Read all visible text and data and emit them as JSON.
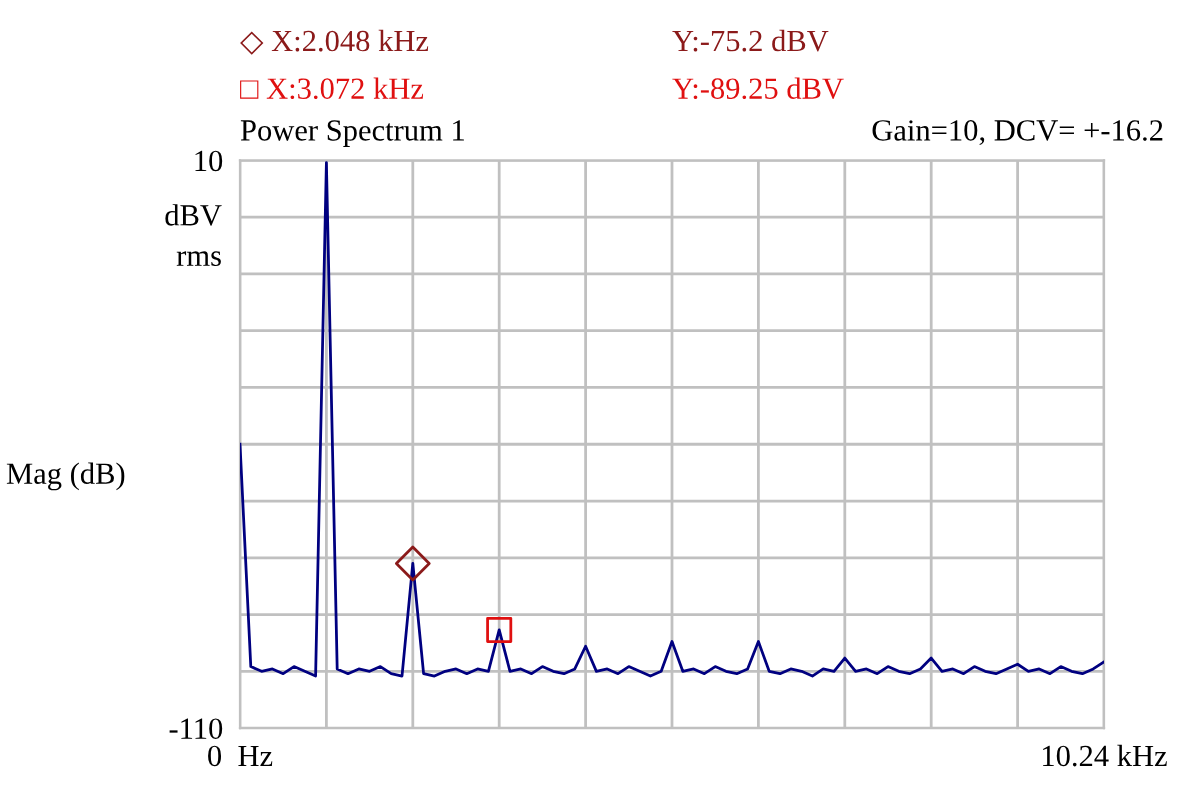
{
  "chart_data": {
    "type": "line",
    "title": "Power Spectrum 1",
    "subtitle": "Gain=10, DCV= +-16.2",
    "ylabel": "Mag (dB)",
    "annotations": [
      "◇ X:2.048 kHz",
      "Y:-75.2 dBV",
      "□ X:3.072 kHz",
      "Y:-89.25 dBV",
      "dBV\nrms"
    ],
    "series": [
      {
        "color": "#000080",
        "marker": "none",
        "x": [
          0,
          0.128,
          0.256,
          0.384,
          0.512,
          0.64,
          0.768,
          0.896,
          1.024,
          1.152,
          1.28,
          1.408,
          1.536,
          1.664,
          1.792,
          1.92,
          2.048,
          2.176,
          2.304,
          2.432,
          2.56,
          2.688,
          2.816,
          2.944,
          3.072,
          3.2,
          3.328,
          3.456,
          3.584,
          3.712,
          3.84,
          3.968,
          4.096,
          4.224,
          4.352,
          4.48,
          4.608,
          4.736,
          4.864,
          4.992,
          5.12,
          5.248,
          5.376,
          5.504,
          5.632,
          5.76,
          5.888,
          6.016,
          6.144,
          6.272,
          6.4,
          6.528,
          6.656,
          6.784,
          6.912,
          7.04,
          7.168,
          7.296,
          7.424,
          7.552,
          7.68,
          7.808,
          7.936,
          8.064,
          8.192,
          8.32,
          8.448,
          8.576,
          8.704,
          8.832,
          8.96,
          9.088,
          9.216,
          9.344,
          9.472,
          9.6,
          9.728,
          9.856,
          9.984,
          10.112,
          10.24
        ],
        "values": [
          -50,
          -97,
          -98,
          -97.5,
          -98.5,
          -97,
          -98,
          -99,
          9.5,
          -97.5,
          -98.5,
          -97.5,
          -98,
          -97,
          -98.5,
          -99,
          -75.2,
          -98.5,
          -99,
          -98,
          -97.5,
          -98.5,
          -97.5,
          -98,
          -89.25,
          -98,
          -97.5,
          -98.5,
          -97,
          -98,
          -98.5,
          -97.5,
          -92.7,
          -98,
          -97.5,
          -98.5,
          -97,
          -98,
          -99,
          -98,
          -91.7,
          -98,
          -97.5,
          -98.5,
          -97,
          -98,
          -98.5,
          -97.5,
          -91.7,
          -98,
          -98.5,
          -97.5,
          -98,
          -99,
          -97.5,
          -98,
          -95.2,
          -98,
          -97.5,
          -98.5,
          -97,
          -98,
          -98.5,
          -97.5,
          -95.2,
          -98,
          -97.5,
          -98.5,
          -97,
          -98,
          -98.5,
          -97.5,
          -96.5,
          -98,
          -97.5,
          -98.5,
          -97,
          -98,
          -98.5,
          -97.5,
          -96
        ]
      },
      {
        "type": "scatter",
        "marker": "diamond",
        "color": "#8b1a1a",
        "x": [
          2.048
        ],
        "values": [
          -75.2
        ]
      },
      {
        "type": "scatter",
        "marker": "square",
        "color": "#e01010",
        "x": [
          3.072
        ],
        "values": [
          -89.25
        ]
      }
    ],
    "xlim": [
      0,
      10.24
    ],
    "ylim": [
      -110,
      10
    ],
    "xticks": [
      {
        "value": 0,
        "label": "0  Hz"
      },
      {
        "value": 1.024,
        "label": null
      },
      {
        "value": 2.048,
        "label": null
      },
      {
        "value": 3.072,
        "label": null
      },
      {
        "value": 4.096,
        "label": null
      },
      {
        "value": 5.12,
        "label": null
      },
      {
        "value": 6.144,
        "label": null
      },
      {
        "value": 7.168,
        "label": null
      },
      {
        "value": 8.192,
        "label": null
      },
      {
        "value": 9.216,
        "label": null
      },
      {
        "value": 10.24,
        "label": "10.24 kHz"
      }
    ],
    "yticks": [
      -110,
      {
        "value": -98,
        "label": null
      },
      {
        "value": -86,
        "label": null
      },
      {
        "value": -74,
        "label": null
      },
      {
        "value": -62,
        "label": null
      },
      {
        "value": -50,
        "label": null
      },
      {
        "value": -38,
        "label": null
      },
      {
        "value": -26,
        "label": null
      },
      {
        "value": -14,
        "label": null
      },
      {
        "value": -2,
        "label": null
      },
      10
    ],
    "grid": true
  }
}
